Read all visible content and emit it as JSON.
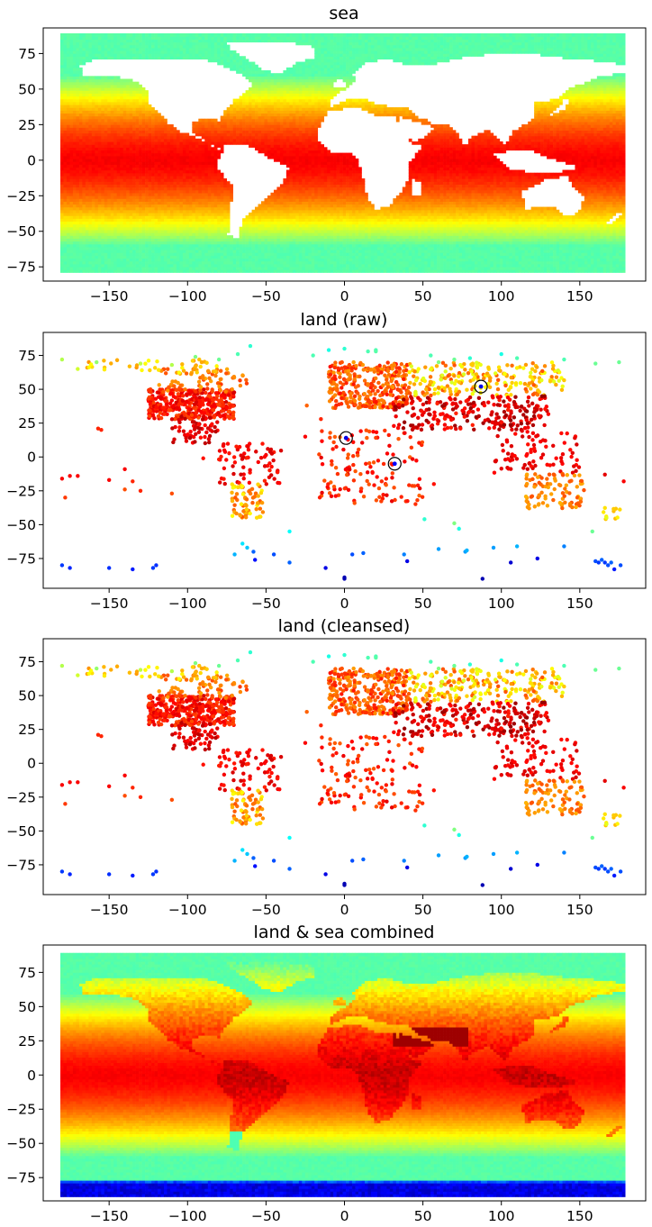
{
  "chart_data": [
    {
      "type": "scatter",
      "title": "sea",
      "xticks": [
        -150,
        -100,
        -50,
        0,
        50,
        100,
        150
      ],
      "yticks": [
        -75,
        -50,
        -25,
        0,
        25,
        50,
        75
      ],
      "xlim": [
        -192,
        192
      ],
      "ylim": [
        -85,
        93
      ],
      "grid": false,
      "colormap": "jet",
      "data_description": "Regular gridded sea surface values, ocean cells only (continents blank)",
      "lon_range": [
        -180,
        178
      ],
      "lat_range": [
        -78,
        88
      ]
    },
    {
      "type": "scatter",
      "title": "land (raw)",
      "xticks": [
        -150,
        -100,
        -50,
        0,
        50,
        100,
        150
      ],
      "yticks": [
        -75,
        -50,
        -25,
        0,
        25,
        50,
        75
      ],
      "xlim": [
        -192,
        192
      ],
      "ylim": [
        -97,
        92
      ],
      "grid": false,
      "colormap": "jet",
      "circled_outliers": [
        {
          "x": 1,
          "y": 14
        },
        {
          "x": 32,
          "y": -5
        },
        {
          "x": 87,
          "y": 52
        }
      ]
    },
    {
      "type": "scatter",
      "title": "land (cleansed)",
      "xticks": [
        -150,
        -100,
        -50,
        0,
        50,
        100,
        150
      ],
      "yticks": [
        -75,
        -50,
        -25,
        0,
        25,
        50,
        75
      ],
      "xlim": [
        -192,
        192
      ],
      "ylim": [
        -97,
        92
      ],
      "grid": false,
      "colormap": "jet"
    },
    {
      "type": "scatter",
      "title": "land & sea combined",
      "xticks": [
        -150,
        -100,
        -50,
        0,
        50,
        100,
        150
      ],
      "yticks": [
        -75,
        -50,
        -25,
        0,
        25,
        50,
        75
      ],
      "xlim": [
        -192,
        192
      ],
      "ylim": [
        -92,
        95
      ],
      "grid": false,
      "colormap": "jet",
      "lon_range": [
        -180,
        178
      ],
      "lat_range": [
        -88,
        88
      ]
    }
  ]
}
